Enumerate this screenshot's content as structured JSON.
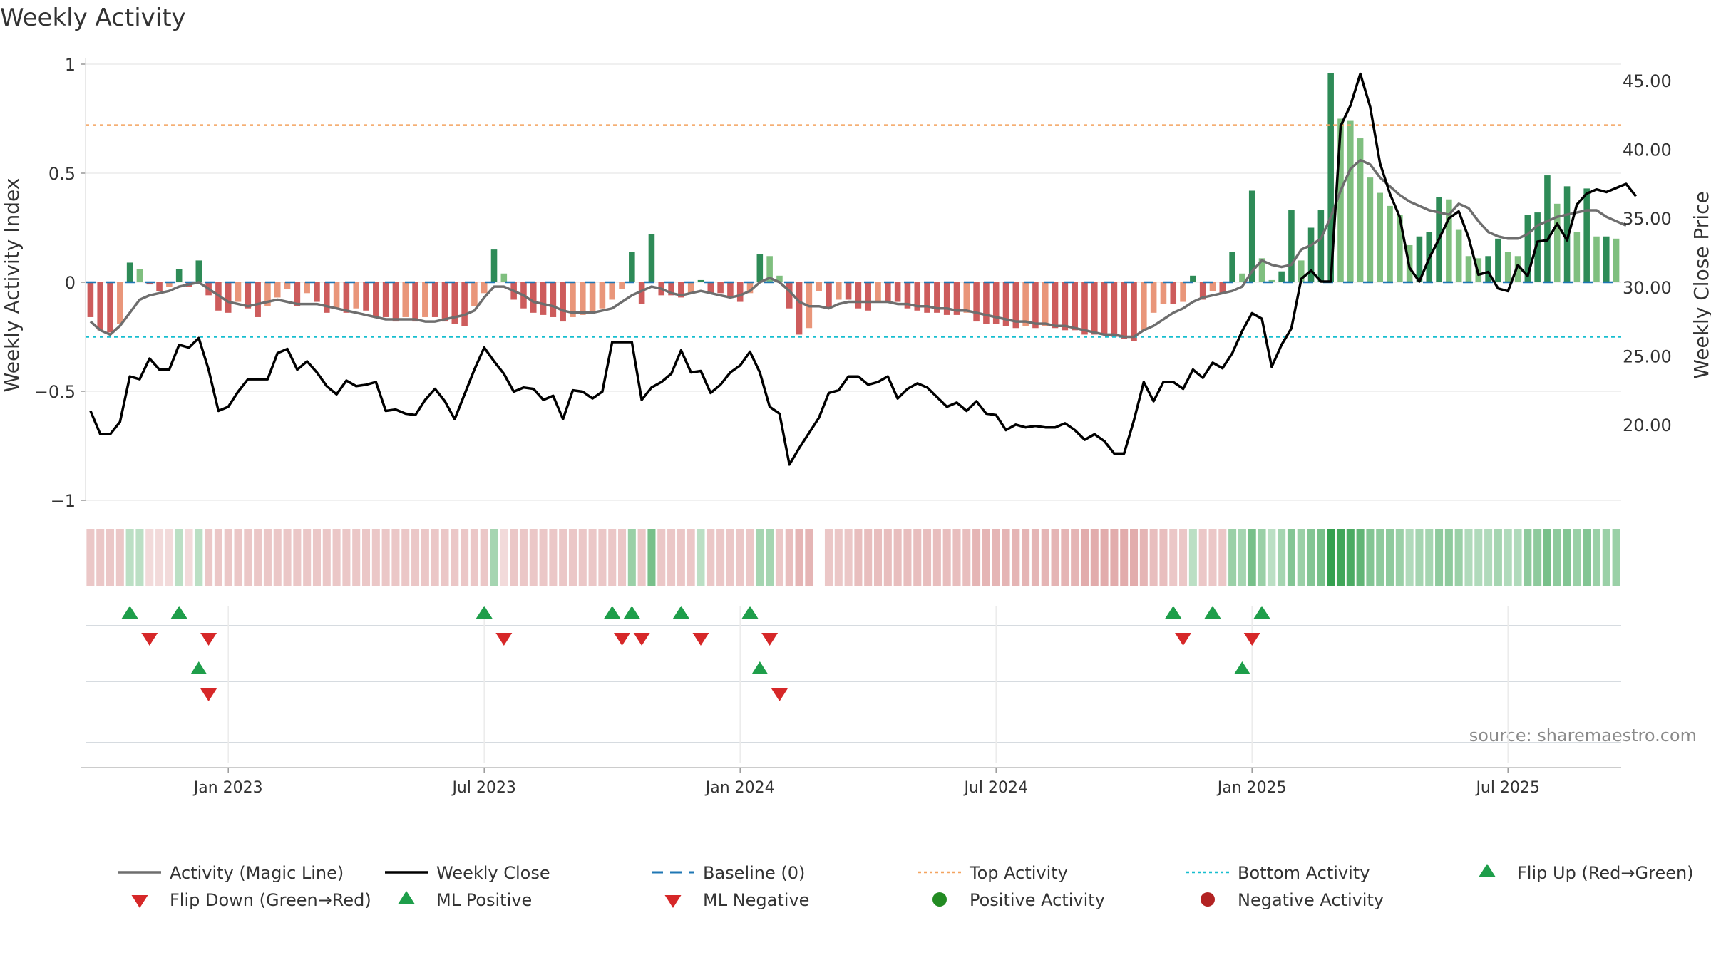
{
  "chart_data": {
    "type": "bar",
    "title": "Weekly Activity",
    "ylabel_left": "Weekly Activity Index",
    "ylabel_right": "Weekly Close Price",
    "source_text": "source: sharemaestro.com",
    "left_ticks": [
      {
        "value": 1,
        "label": "1"
      },
      {
        "value": 0.5,
        "label": "0.5"
      },
      {
        "value": 0,
        "label": "0"
      },
      {
        "value": -0.5,
        "label": "−0.5"
      },
      {
        "value": -1,
        "label": "−1"
      }
    ],
    "right_ticks": [
      {
        "value": 45,
        "label": "45.00"
      },
      {
        "value": 40,
        "label": "40.00"
      },
      {
        "value": 35,
        "label": "35.00"
      },
      {
        "value": 30,
        "label": "30.00"
      },
      {
        "value": 25,
        "label": "25.00"
      },
      {
        "value": 20,
        "label": "20.00"
      }
    ],
    "left_ylim": [
      -1.0,
      1.0
    ],
    "right_ylim": [
      14.5,
      46.2
    ],
    "x_ticks": [
      {
        "week": 14,
        "label": "Jan 2023"
      },
      {
        "week": 40,
        "label": "Jul 2023"
      },
      {
        "week": 66,
        "label": "Jan 2024"
      },
      {
        "week": 92,
        "label": "Jul 2024"
      },
      {
        "week": 118,
        "label": "Jan 2025"
      },
      {
        "week": 144,
        "label": "Jul 2025"
      }
    ],
    "top_activity": 0.72,
    "bottom_activity": -0.25,
    "baseline": 0,
    "activity": [
      -0.16,
      -0.22,
      -0.23,
      -0.19,
      0.09,
      0.06,
      -0.01,
      -0.04,
      -0.02,
      0.06,
      -0.02,
      0.1,
      -0.06,
      -0.13,
      -0.14,
      -0.09,
      -0.12,
      -0.16,
      -0.11,
      -0.07,
      -0.03,
      -0.11,
      -0.05,
      -0.09,
      -0.14,
      -0.12,
      -0.14,
      -0.12,
      -0.13,
      -0.16,
      -0.16,
      -0.18,
      -0.16,
      -0.18,
      -0.16,
      -0.16,
      -0.18,
      -0.19,
      -0.2,
      -0.11,
      -0.05,
      0.15,
      0.04,
      -0.08,
      -0.12,
      -0.14,
      -0.15,
      -0.16,
      -0.18,
      -0.16,
      -0.15,
      -0.14,
      -0.12,
      -0.08,
      -0.03,
      0.14,
      -0.1,
      0.22,
      -0.06,
      -0.06,
      -0.07,
      -0.05,
      0.01,
      -0.05,
      -0.05,
      -0.07,
      -0.09,
      -0.05,
      0.13,
      0.12,
      0.03,
      -0.12,
      -0.24,
      -0.21,
      -0.04,
      -0.12,
      -0.08,
      -0.08,
      -0.12,
      -0.13,
      -0.09,
      -0.09,
      -0.09,
      -0.12,
      -0.13,
      -0.14,
      -0.14,
      -0.15,
      -0.15,
      -0.14,
      -0.18,
      -0.19,
      -0.19,
      -0.2,
      -0.21,
      -0.2,
      -0.21,
      -0.2,
      -0.21,
      -0.22,
      -0.22,
      -0.24,
      -0.24,
      -0.24,
      -0.25,
      -0.26,
      -0.27,
      -0.22,
      -0.14,
      -0.1,
      -0.1,
      -0.09,
      0.03,
      -0.08,
      -0.04,
      -0.05,
      0.14,
      0.04,
      0.42,
      0.11,
      0.01,
      0.05,
      0.33,
      0.1,
      0.25,
      0.33,
      0.96,
      0.75,
      0.74,
      0.66,
      0.48,
      0.41,
      0.35,
      0.31,
      0.17,
      0.21,
      0.23,
      0.39,
      0.38,
      0.24,
      0.12,
      0.11,
      0.12,
      0.2,
      0.14,
      0.12,
      0.31,
      0.32,
      0.49,
      0.36,
      0.44,
      0.23,
      0.43,
      0.21,
      0.21,
      0.2
    ],
    "magic_line": [
      -0.18,
      -0.22,
      -0.24,
      -0.2,
      -0.14,
      -0.08,
      -0.06,
      -0.05,
      -0.04,
      -0.02,
      -0.01,
      0.0,
      -0.03,
      -0.06,
      -0.09,
      -0.1,
      -0.11,
      -0.1,
      -0.09,
      -0.08,
      -0.09,
      -0.1,
      -0.1,
      -0.1,
      -0.11,
      -0.12,
      -0.13,
      -0.14,
      -0.15,
      -0.16,
      -0.17,
      -0.17,
      -0.17,
      -0.17,
      -0.18,
      -0.18,
      -0.17,
      -0.16,
      -0.15,
      -0.13,
      -0.07,
      -0.02,
      -0.02,
      -0.04,
      -0.06,
      -0.09,
      -0.1,
      -0.11,
      -0.13,
      -0.14,
      -0.14,
      -0.14,
      -0.13,
      -0.12,
      -0.09,
      -0.06,
      -0.04,
      -0.02,
      -0.03,
      -0.05,
      -0.06,
      -0.05,
      -0.04,
      -0.05,
      -0.06,
      -0.07,
      -0.06,
      -0.04,
      0.0,
      0.02,
      0.0,
      -0.04,
      -0.09,
      -0.11,
      -0.11,
      -0.12,
      -0.1,
      -0.09,
      -0.09,
      -0.09,
      -0.09,
      -0.09,
      -0.1,
      -0.1,
      -0.11,
      -0.11,
      -0.12,
      -0.12,
      -0.13,
      -0.13,
      -0.14,
      -0.15,
      -0.16,
      -0.17,
      -0.18,
      -0.18,
      -0.19,
      -0.19,
      -0.2,
      -0.2,
      -0.21,
      -0.22,
      -0.23,
      -0.24,
      -0.24,
      -0.25,
      -0.25,
      -0.22,
      -0.2,
      -0.17,
      -0.14,
      -0.12,
      -0.09,
      -0.07,
      -0.06,
      -0.05,
      -0.04,
      -0.02,
      0.05,
      0.1,
      0.08,
      0.07,
      0.08,
      0.15,
      0.17,
      0.2,
      0.3,
      0.42,
      0.52,
      0.56,
      0.54,
      0.48,
      0.44,
      0.4,
      0.37,
      0.35,
      0.33,
      0.32,
      0.31,
      0.36,
      0.34,
      0.28,
      0.23,
      0.21,
      0.2,
      0.2,
      0.22,
      0.26,
      0.28,
      0.3,
      0.31,
      0.32,
      0.33,
      0.33,
      0.3,
      0.28,
      0.26
    ],
    "close": [
      21.0,
      19.3,
      19.3,
      20.2,
      23.5,
      23.3,
      24.8,
      24.0,
      24.0,
      25.8,
      25.6,
      26.3,
      24.0,
      21.0,
      21.3,
      22.4,
      23.3,
      23.3,
      23.3,
      25.2,
      25.5,
      24.0,
      24.6,
      23.8,
      22.8,
      22.2,
      23.2,
      22.8,
      22.9,
      23.1,
      21.0,
      21.1,
      20.8,
      20.7,
      21.8,
      22.6,
      21.7,
      20.4,
      22.2,
      24.0,
      25.6,
      24.6,
      23.7,
      22.4,
      22.7,
      22.6,
      21.8,
      22.1,
      20.4,
      22.5,
      22.4,
      21.9,
      22.4,
      26.0,
      26.0,
      26.0,
      21.8,
      22.7,
      23.1,
      23.7,
      25.4,
      23.8,
      23.9,
      22.3,
      22.9,
      23.8,
      24.3,
      25.3,
      23.8,
      21.3,
      20.8,
      17.1,
      18.3,
      19.4,
      20.5,
      22.3,
      22.5,
      23.5,
      23.5,
      22.9,
      23.1,
      23.5,
      21.9,
      22.6,
      23.0,
      22.7,
      22.0,
      21.3,
      21.6,
      21.0,
      21.7,
      20.8,
      20.7,
      19.6,
      20.0,
      19.8,
      19.9,
      19.8,
      19.8,
      20.1,
      19.6,
      18.9,
      19.3,
      18.8,
      17.9,
      17.9,
      20.3,
      23.1,
      21.7,
      23.1,
      23.1,
      22.6,
      24.0,
      23.4,
      24.5,
      24.1,
      25.2,
      26.8,
      28.1,
      27.7,
      24.2,
      25.8,
      27.0,
      30.6,
      31.2,
      30.4,
      30.4,
      41.7,
      43.2,
      45.5,
      43.1,
      39.0,
      36.8,
      35.1,
      31.4,
      30.4,
      32.1,
      33.5,
      35.0,
      35.5,
      33.6,
      30.9,
      31.1,
      29.9,
      29.7,
      31.6,
      30.8,
      33.3,
      33.4,
      34.6,
      33.4,
      36.0,
      36.8,
      37.1,
      36.9,
      37.2,
      37.5,
      36.6
    ],
    "ribbon": [
      -0.3,
      -0.3,
      -0.3,
      -0.3,
      0.3,
      0.3,
      -0.2,
      -0.2,
      -0.2,
      0.3,
      -0.2,
      0.3,
      -0.3,
      -0.3,
      -0.3,
      -0.3,
      -0.3,
      -0.3,
      -0.3,
      -0.3,
      -0.3,
      -0.3,
      -0.3,
      -0.3,
      -0.3,
      -0.3,
      -0.3,
      -0.3,
      -0.3,
      -0.3,
      -0.3,
      -0.3,
      -0.3,
      -0.3,
      -0.3,
      -0.3,
      -0.3,
      -0.3,
      -0.3,
      -0.3,
      -0.3,
      0.4,
      -0.2,
      -0.3,
      -0.3,
      -0.3,
      -0.3,
      -0.3,
      -0.3,
      -0.3,
      -0.3,
      -0.3,
      -0.3,
      -0.3,
      -0.3,
      0.45,
      -0.3,
      0.6,
      -0.3,
      -0.3,
      -0.3,
      -0.3,
      0.3,
      -0.3,
      -0.3,
      -0.3,
      -0.3,
      -0.3,
      0.4,
      0.4,
      -0.3,
      -0.35,
      -0.4,
      -0.4,
      null,
      -0.3,
      -0.3,
      -0.3,
      -0.35,
      -0.35,
      -0.35,
      -0.35,
      -0.35,
      -0.35,
      -0.35,
      -0.35,
      -0.35,
      -0.35,
      -0.35,
      -0.35,
      -0.4,
      -0.4,
      -0.4,
      -0.4,
      -0.4,
      -0.4,
      -0.4,
      -0.4,
      -0.4,
      -0.4,
      -0.4,
      -0.45,
      -0.45,
      -0.45,
      -0.45,
      -0.45,
      -0.45,
      -0.4,
      -0.35,
      -0.35,
      -0.3,
      -0.3,
      0.3,
      -0.3,
      -0.3,
      -0.3,
      0.45,
      0.4,
      0.6,
      0.45,
      0.3,
      0.4,
      0.55,
      0.45,
      0.55,
      0.6,
      0.9,
      0.85,
      0.8,
      0.7,
      0.55,
      0.5,
      0.5,
      0.45,
      0.35,
      0.4,
      0.4,
      0.5,
      0.5,
      0.45,
      0.35,
      0.35,
      0.35,
      0.4,
      0.35,
      0.35,
      0.5,
      0.5,
      0.6,
      0.5,
      0.55,
      0.45,
      0.55,
      0.45,
      0.45,
      0.45
    ],
    "flip_up": [
      4,
      9,
      40,
      53,
      55,
      60,
      67,
      110,
      114,
      119
    ],
    "flip_down": [
      6,
      12,
      42,
      54,
      56,
      62,
      69,
      111,
      118
    ],
    "ml_positive": [
      11,
      68,
      117
    ],
    "ml_negative": [
      12,
      70
    ],
    "legend": [
      {
        "label": "Activity (Magic Line)",
        "symbol": "line",
        "color": "#6e6e6e"
      },
      {
        "label": "Weekly Close",
        "symbol": "line",
        "color": "#000000"
      },
      {
        "label": "Baseline (0)",
        "symbol": "dash",
        "color": "#1f77b4"
      },
      {
        "label": "Top Activity",
        "symbol": "dot-line",
        "color": "#f4a460"
      },
      {
        "label": "Bottom Activity",
        "symbol": "dot-line",
        "color": "#17becf"
      },
      {
        "label": "Flip Up (Red→Green)",
        "symbol": "triangle-up",
        "color": "#1e9e4a"
      },
      {
        "label": "Flip Down (Green→Red)",
        "symbol": "triangle-down",
        "color": "#d62728"
      },
      {
        "label": "ML Positive",
        "symbol": "triangle-up",
        "color": "#1e9e4a"
      },
      {
        "label": "ML Negative",
        "symbol": "triangle-down",
        "color": "#d62728"
      },
      {
        "label": "Positive Activity",
        "symbol": "circle",
        "color": "#228b22"
      },
      {
        "label": "Negative Activity",
        "symbol": "circle",
        "color": "#b22222"
      }
    ],
    "colors": {
      "pos_strong": "#2e8b57",
      "pos_light": "#7fbf7f",
      "neg_strong": "#cd5c5c",
      "neg_light": "#e9967a",
      "magic_line": "#6e6e6e",
      "close": "#000000",
      "baseline": "#1f77b4",
      "top": "#f4a460",
      "bottom": "#17becf",
      "marker_up": "#1e9e4a",
      "marker_down": "#d62728"
    }
  }
}
